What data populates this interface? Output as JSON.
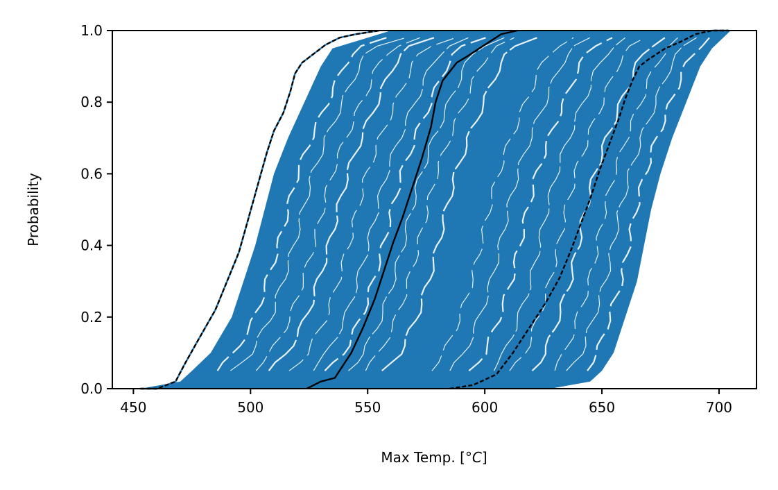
{
  "chart_data": {
    "type": "line",
    "title": "",
    "xlabel": "Max Temp. [",
    "xlabel_unit": "°C",
    "xlabel_close": "]",
    "ylabel": "Probability",
    "xlim": [
      441,
      716
    ],
    "ylim": [
      0,
      1
    ],
    "x_ticks": [
      450,
      500,
      550,
      600,
      650,
      700
    ],
    "x_tick_labels": [
      "450",
      "500",
      "550",
      "600",
      "650",
      "700"
    ],
    "y_ticks": [
      0.0,
      0.2,
      0.4,
      0.6,
      0.8,
      1.0
    ],
    "y_tick_labels": [
      "0.0",
      "0.2",
      "0.4",
      "0.6",
      "0.8",
      "1.0"
    ],
    "grid": false,
    "legend": "none",
    "colors": {
      "samples": "#1f77b4",
      "median": "#000000",
      "bounds": "#000000"
    },
    "band": {
      "lower": {
        "y": [
          0.0,
          0.02,
          0.05,
          0.1,
          0.2,
          0.3,
          0.4,
          0.5,
          0.6,
          0.7,
          0.8,
          0.9,
          0.95,
          1.0
        ],
        "x": [
          453,
          470,
          475,
          483,
          492,
          497,
          502,
          506,
          510,
          516,
          523,
          530,
          535,
          560
        ]
      },
      "upper": {
        "y": [
          0.0,
          0.02,
          0.05,
          0.1,
          0.2,
          0.3,
          0.4,
          0.5,
          0.6,
          0.7,
          0.8,
          0.9,
          0.95,
          1.0
        ],
        "x": [
          628,
          645,
          650,
          655,
          660,
          665,
          668,
          671,
          675,
          680,
          686,
          692,
          697,
          705
        ]
      }
    },
    "series": [
      {
        "role": "median",
        "style": "solid",
        "x": [
          524,
          530,
          536,
          543,
          548,
          553,
          557,
          561,
          565,
          569,
          573,
          577,
          579,
          582,
          588,
          593,
          600,
          607,
          614
        ],
        "y": [
          0.0,
          0.02,
          0.03,
          0.1,
          0.17,
          0.25,
          0.33,
          0.41,
          0.48,
          0.56,
          0.64,
          0.73,
          0.8,
          0.86,
          0.91,
          0.93,
          0.96,
          0.99,
          1.0
        ]
      },
      {
        "role": "lower-bound",
        "style": "dashed",
        "x": [
          453,
          460,
          468,
          472,
          478,
          485,
          490,
          495,
          498,
          501,
          504,
          507,
          510,
          514,
          517,
          519,
          522,
          526,
          532,
          538,
          545,
          555
        ],
        "y": [
          0.0,
          0.0,
          0.02,
          0.07,
          0.14,
          0.22,
          0.3,
          0.38,
          0.45,
          0.52,
          0.59,
          0.66,
          0.72,
          0.77,
          0.83,
          0.88,
          0.91,
          0.93,
          0.96,
          0.98,
          0.99,
          1.0
        ]
      },
      {
        "role": "upper-bound",
        "style": "dashed",
        "x": [
          585,
          595,
          605,
          612,
          619,
          626,
          632,
          637,
          641,
          645,
          649,
          653,
          657,
          660,
          663,
          666,
          670,
          677,
          684,
          690,
          697,
          704
        ],
        "y": [
          0.0,
          0.01,
          0.04,
          0.1,
          0.17,
          0.24,
          0.31,
          0.39,
          0.46,
          0.53,
          0.61,
          0.68,
          0.75,
          0.81,
          0.86,
          0.9,
          0.92,
          0.95,
          0.97,
          0.99,
          1.0,
          1.0
        ]
      }
    ]
  }
}
